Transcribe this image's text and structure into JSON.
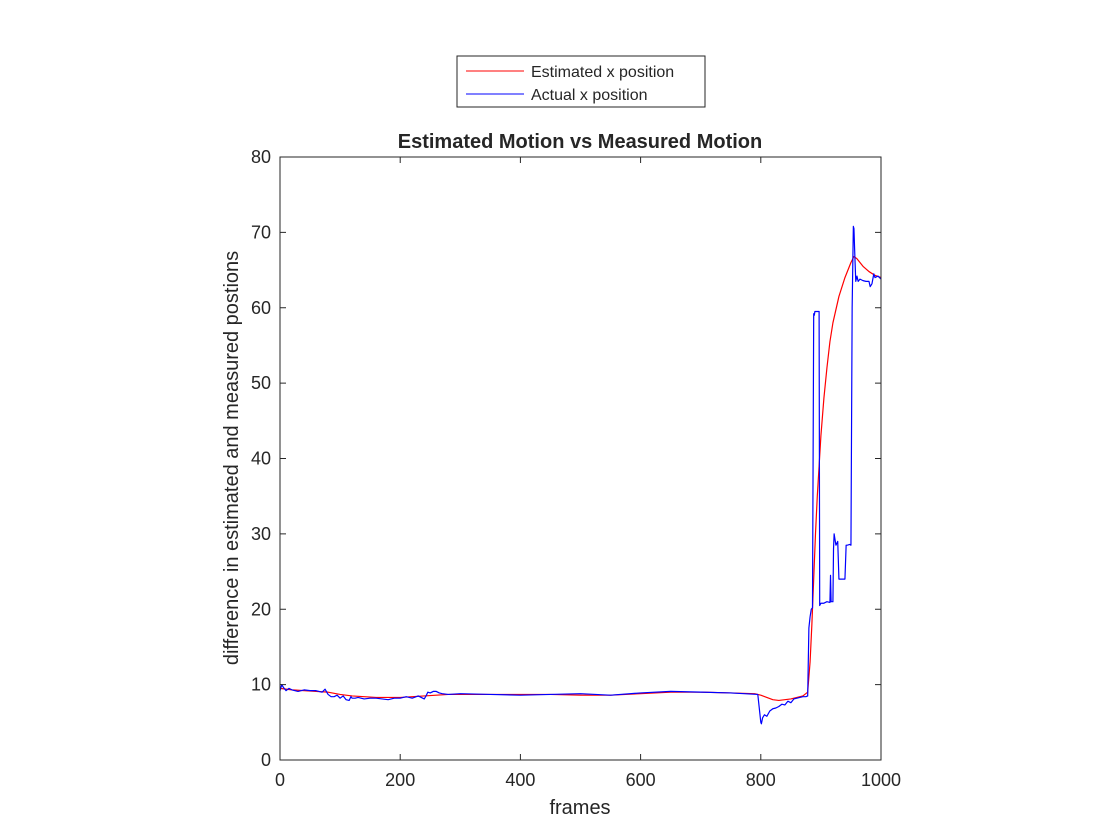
{
  "chart_data": {
    "type": "line",
    "title": "Estimated Motion vs Measured Motion",
    "xlabel": "frames",
    "ylabel": "difference in estimated and measured postions",
    "xlim": [
      0,
      1000
    ],
    "ylim": [
      0,
      80
    ],
    "xticks": [
      0,
      200,
      400,
      600,
      800,
      1000
    ],
    "yticks": [
      0,
      10,
      20,
      30,
      40,
      50,
      60,
      70,
      80
    ],
    "grid": false,
    "legend_position": "top-center-outside",
    "series": [
      {
        "name": "Estimated x position",
        "color": "#ff0000",
        "x": [
          0,
          20,
          40,
          60,
          80,
          100,
          120,
          140,
          160,
          180,
          200,
          220,
          240,
          260,
          280,
          300,
          350,
          400,
          450,
          500,
          550,
          600,
          650,
          700,
          750,
          790,
          800,
          810,
          820,
          830,
          840,
          850,
          860,
          870,
          878,
          882,
          885,
          888,
          891,
          894,
          897,
          900,
          905,
          910,
          915,
          920,
          930,
          940,
          950,
          955,
          960,
          970,
          980,
          990,
          1000
        ],
        "y": [
          9.5,
          9.3,
          9.2,
          9.1,
          9.0,
          8.7,
          8.5,
          8.4,
          8.3,
          8.3,
          8.3,
          8.4,
          8.5,
          8.6,
          8.7,
          8.7,
          8.7,
          8.7,
          8.7,
          8.6,
          8.6,
          8.8,
          9.0,
          9.0,
          8.9,
          8.8,
          8.6,
          8.3,
          8.0,
          7.9,
          8.0,
          8.1,
          8.3,
          8.5,
          9.0,
          13.0,
          18.0,
          24.0,
          30.0,
          35.0,
          39.0,
          43.0,
          48.0,
          52.0,
          55.5,
          58.0,
          61.5,
          64.0,
          66.0,
          66.8,
          66.5,
          65.5,
          64.8,
          64.3,
          64.0
        ]
      },
      {
        "name": "Actual x position",
        "color": "#0000ff",
        "x": [
          0,
          3,
          6,
          10,
          15,
          20,
          30,
          40,
          50,
          60,
          70,
          75,
          80,
          85,
          90,
          95,
          100,
          105,
          110,
          115,
          118,
          120,
          125,
          130,
          140,
          150,
          160,
          170,
          180,
          190,
          200,
          210,
          220,
          230,
          240,
          243,
          246,
          250,
          255,
          260,
          265,
          270,
          280,
          300,
          350,
          400,
          450,
          500,
          550,
          600,
          650,
          700,
          750,
          795,
          800,
          801,
          803,
          806,
          810,
          815,
          820,
          825,
          830,
          835,
          840,
          845,
          850,
          855,
          860,
          865,
          870,
          875,
          878,
          880,
          882,
          884,
          886,
          888,
          889,
          890,
          897,
          898,
          900,
          905,
          910,
          915,
          916,
          917,
          918,
          920,
          921,
          922,
          925,
          928,
          930,
          932,
          935,
          940,
          942,
          944,
          948,
          950,
          952,
          954,
          955,
          956,
          958,
          960,
          962,
          965,
          970,
          975,
          980,
          982,
          985,
          988,
          990,
          995,
          1000
        ],
        "y": [
          9.2,
          10.0,
          9.6,
          9.2,
          9.5,
          9.3,
          9.1,
          9.3,
          9.2,
          9.2,
          9.0,
          9.4,
          8.7,
          8.4,
          8.4,
          8.6,
          8.2,
          8.5,
          8.0,
          7.9,
          8.4,
          8.2,
          8.2,
          8.3,
          8.1,
          8.2,
          8.2,
          8.1,
          8.0,
          8.2,
          8.2,
          8.4,
          8.2,
          8.5,
          8.1,
          8.5,
          9.0,
          8.9,
          9.1,
          9.1,
          8.9,
          8.8,
          8.7,
          8.8,
          8.7,
          8.6,
          8.7,
          8.8,
          8.6,
          8.9,
          9.1,
          9.0,
          8.9,
          8.7,
          5.0,
          4.8,
          5.6,
          6.0,
          5.8,
          6.5,
          6.8,
          6.9,
          7.1,
          7.4,
          7.3,
          7.8,
          7.6,
          8.1,
          8.2,
          8.3,
          8.4,
          8.4,
          8.5,
          17.5,
          19.0,
          20.0,
          20.2,
          59.2,
          59.0,
          59.5,
          59.5,
          20.5,
          20.8,
          20.8,
          21.0,
          20.9,
          24.5,
          21.0,
          21.0,
          21.0,
          28.0,
          30.0,
          28.5,
          29.0,
          24.0,
          24.0,
          24.0,
          24.0,
          28.5,
          28.5,
          28.6,
          28.5,
          60.0,
          70.8,
          70.5,
          68.0,
          63.5,
          64.2,
          63.5,
          63.8,
          63.6,
          63.5,
          63.5,
          62.8,
          63.2,
          64.5,
          64.0,
          64.2,
          63.8
        ]
      }
    ]
  }
}
